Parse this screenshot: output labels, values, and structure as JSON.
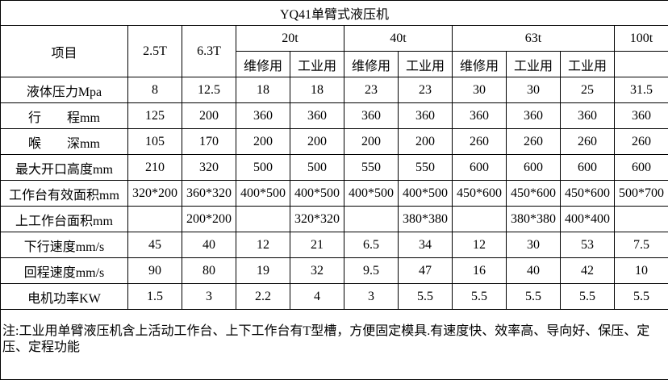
{
  "title": "YQ41单臂式液压机",
  "header": {
    "item_label": "项目",
    "groups": [
      {
        "label": "2.5T",
        "subs": []
      },
      {
        "label": "6.3T",
        "subs": []
      },
      {
        "label": "20t",
        "subs": [
          "维修用",
          "工业用"
        ]
      },
      {
        "label": "40t",
        "subs": [
          "维修用",
          "工业用"
        ]
      },
      {
        "label": "63t",
        "subs": [
          "维修用",
          "工业用",
          "工业用"
        ]
      },
      {
        "label": "100t",
        "subs": [
          ""
        ]
      }
    ]
  },
  "rows": [
    {
      "label": "液体压力Mpa",
      "values": [
        "8",
        "12.5",
        "18",
        "18",
        "23",
        "23",
        "30",
        "30",
        "25",
        "31.5"
      ]
    },
    {
      "label": "行　　程mm",
      "values": [
        "125",
        "200",
        "360",
        "360",
        "360",
        "360",
        "360",
        "360",
        "360",
        "360"
      ]
    },
    {
      "label": "喉　　深mm",
      "values": [
        "105",
        "170",
        "200",
        "200",
        "200",
        "200",
        "260",
        "260",
        "260",
        "260"
      ]
    },
    {
      "label": "最大开口高度mm",
      "values": [
        "210",
        "320",
        "500",
        "500",
        "550",
        "550",
        "600",
        "600",
        "600",
        "600"
      ]
    },
    {
      "label": "工作台有效面积mm",
      "values": [
        "320*200",
        "360*320",
        "400*500",
        "400*500",
        "400*500",
        "400*500",
        "450*600",
        "450*600",
        "450*600",
        "500*700"
      ]
    },
    {
      "label": "上工作台面积mm",
      "values": [
        "",
        "200*200",
        "",
        "320*320",
        "",
        "380*380",
        "",
        "380*380",
        "400*400",
        ""
      ]
    },
    {
      "label": "下行速度mm/s",
      "values": [
        "45",
        "40",
        "12",
        "21",
        "6.5",
        "34",
        "12",
        "30",
        "53",
        "7.5"
      ]
    },
    {
      "label": "回程速度mm/s",
      "values": [
        "90",
        "80",
        "19",
        "32",
        "9.5",
        "47",
        "16",
        "40",
        "42",
        "10"
      ]
    },
    {
      "label": "电机功率KW",
      "values": [
        "1.5",
        "3",
        "2.2",
        "4",
        "3",
        "5.5",
        "5.5",
        "5.5",
        "5.5",
        "5.5"
      ]
    }
  ],
  "note": "注:工业用单臂液压机含上活动工作台、上下工作台有T型槽，方便固定模具.有速度快、效率高、导向好、保压、定压、定程功能",
  "colors": {
    "border": "#000000",
    "background": "#ffffff",
    "text": "#000000"
  }
}
